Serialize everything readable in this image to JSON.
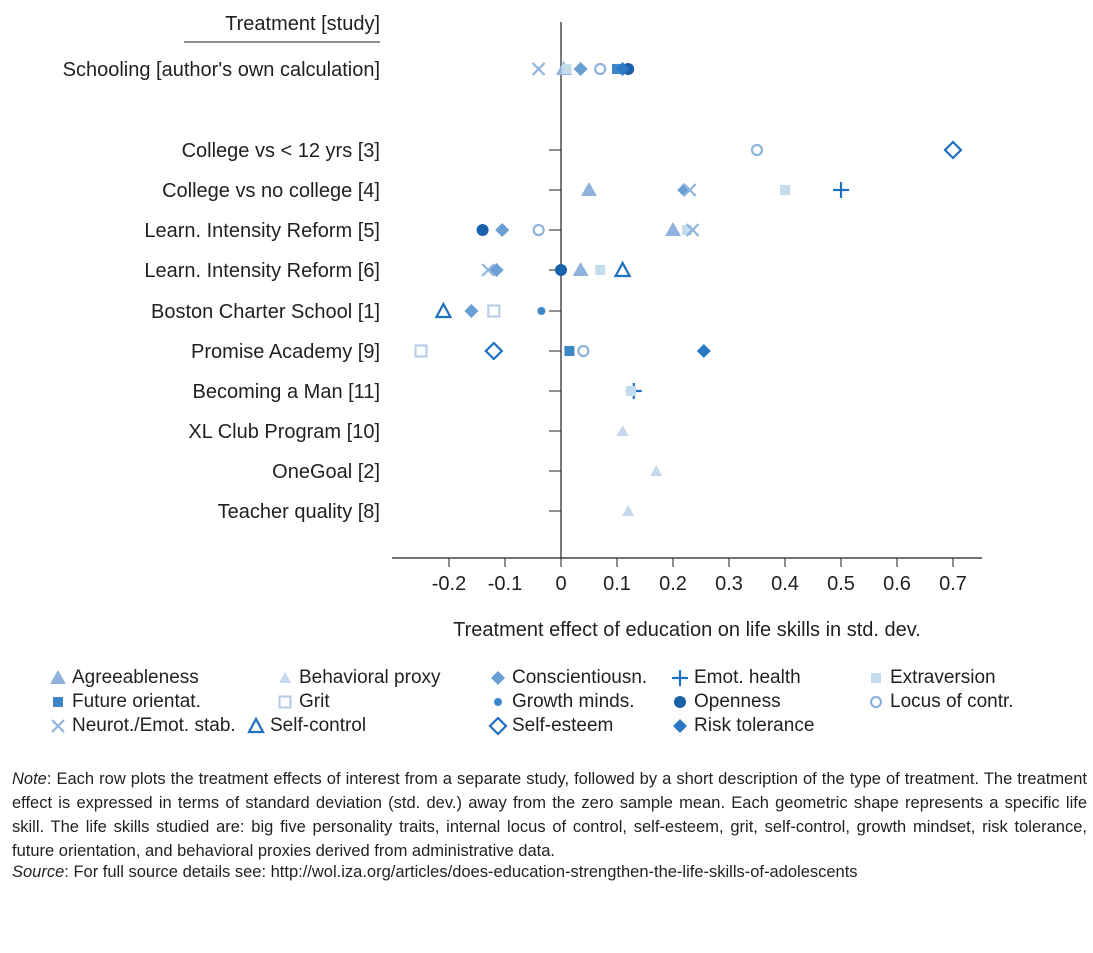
{
  "chart_data": {
    "type": "scatter",
    "title": "",
    "header_label": "Treatment [study]",
    "xlabel": "Treatment effect of education on life skills in std. dev.",
    "ylabel": "",
    "xlim": [
      -0.305,
      0.75
    ],
    "x_ticks": [
      -0.2,
      -0.1,
      0,
      0.1,
      0.2,
      0.3,
      0.4,
      0.5,
      0.6,
      0.7
    ],
    "x_tick_labels": [
      "-0.2",
      "-0.1",
      "0",
      "0.1",
      "0.2",
      "0.3",
      "0.4",
      "0.5",
      "0.6",
      "0.7"
    ],
    "grid": false,
    "legend_position": "bottom",
    "rows": [
      "Schooling [author's own calculation]",
      "College vs < 12 yrs [3]",
      "College vs no college [4]",
      "Learn. Intensity Reform [5]",
      "Learn. Intensity Reform [6]",
      "Boston Charter School [1]",
      "Promise Academy [9]",
      "Becoming a Man [11]",
      "XL Club Program [10]",
      "OneGoal [2]",
      "Teacher quality [8]"
    ],
    "series": [
      {
        "name": "Agreeableness",
        "marker": "triangle-filled",
        "color": "#8fb3dc",
        "points": [
          {
            "row": 0,
            "x": 0.005
          },
          {
            "row": 2,
            "x": 0.05
          },
          {
            "row": 3,
            "x": 0.2
          },
          {
            "row": 4,
            "x": 0.035
          }
        ]
      },
      {
        "name": "Behavioral proxy",
        "marker": "triangle-filled-small",
        "color": "#c5d8ed",
        "points": [
          {
            "row": 8,
            "x": 0.11
          },
          {
            "row": 9,
            "x": 0.17
          },
          {
            "row": 10,
            "x": 0.12
          }
        ]
      },
      {
        "name": "Conscientiousn.",
        "marker": "diamond-filled",
        "color": "#6a9fd4",
        "points": [
          {
            "row": 0,
            "x": 0.035
          },
          {
            "row": 2,
            "x": 0.22
          },
          {
            "row": 3,
            "x": -0.105
          },
          {
            "row": 4,
            "x": -0.115
          },
          {
            "row": 5,
            "x": -0.16
          }
        ]
      },
      {
        "name": "Emot. health",
        "marker": "plus",
        "color": "#1f6fbf",
        "points": [
          {
            "row": 2,
            "x": 0.5
          },
          {
            "row": 7,
            "x": 0.13
          }
        ]
      },
      {
        "name": "Extraversion",
        "marker": "square-filled",
        "color": "#c5dced",
        "points": [
          {
            "row": 0,
            "x": 0.01
          },
          {
            "row": 2,
            "x": 0.4
          },
          {
            "row": 3,
            "x": 0.225
          },
          {
            "row": 4,
            "x": 0.07
          },
          {
            "row": 7,
            "x": 0.125
          }
        ]
      },
      {
        "name": "Future orientat.",
        "marker": "square-filled",
        "color": "#3d86c8",
        "points": [
          {
            "row": 0,
            "x": 0.1
          },
          {
            "row": 6,
            "x": 0.015
          }
        ]
      },
      {
        "name": "Grit",
        "marker": "square-open",
        "color": "#b9cfe9",
        "points": [
          {
            "row": 5,
            "x": -0.12
          },
          {
            "row": 6,
            "x": -0.25
          }
        ]
      },
      {
        "name": "Growth minds.",
        "marker": "circle-filled-small",
        "color": "#3d86c8",
        "points": [
          {
            "row": 5,
            "x": -0.035
          }
        ]
      },
      {
        "name": "Openness",
        "marker": "circle-filled",
        "color": "#1b61a9",
        "points": [
          {
            "row": 0,
            "x": 0.12
          },
          {
            "row": 3,
            "x": -0.14
          },
          {
            "row": 4,
            "x": 0.0
          }
        ]
      },
      {
        "name": "Locus of contr.",
        "marker": "circle-open",
        "color": "#8fb3dc",
        "points": [
          {
            "row": 0,
            "x": 0.07
          },
          {
            "row": 1,
            "x": 0.35
          },
          {
            "row": 3,
            "x": -0.04
          },
          {
            "row": 6,
            "x": 0.04
          }
        ]
      },
      {
        "name": "Neurot./Emot. stab.",
        "marker": "cross",
        "color": "#8fb3dc",
        "points": [
          {
            "row": 0,
            "x": -0.04
          },
          {
            "row": 2,
            "x": 0.23
          },
          {
            "row": 3,
            "x": 0.235
          },
          {
            "row": 4,
            "x": -0.13
          }
        ]
      },
      {
        "name": "Self-control",
        "marker": "triangle-open",
        "color": "#1f6fbf",
        "points": [
          {
            "row": 4,
            "x": 0.11
          },
          {
            "row": 5,
            "x": -0.21
          }
        ]
      },
      {
        "name": "Self-esteem",
        "marker": "diamond-open",
        "color": "#1f6fbf",
        "points": [
          {
            "row": 1,
            "x": 0.7
          },
          {
            "row": 6,
            "x": -0.12
          }
        ]
      },
      {
        "name": "Risk tolerance",
        "marker": "diamond-filled",
        "color": "#2a7ac4",
        "points": [
          {
            "row": 0,
            "x": 0.11
          },
          {
            "row": 6,
            "x": 0.255
          }
        ]
      }
    ]
  },
  "note": {
    "label": "Note",
    "text": ": Each row plots the treatment effects of interest from a separate study, followed by a short description of the type of treatment. The treatment effect is expressed in terms of standard deviation (std. dev.) away from the zero sample mean. Each geometric shape represents a specific life skill. The life skills studied are: big five personality traits, internal locus of control, self-esteem, grit, self-control, growth mindset, risk tolerance, future orientation, and behavioral proxies derived from administrative data."
  },
  "source": {
    "label": "Source",
    "text": ": For full source details see: http://wol.iza.org/articles/does-education-strengthen-the-life-skills-of-adolescents"
  }
}
